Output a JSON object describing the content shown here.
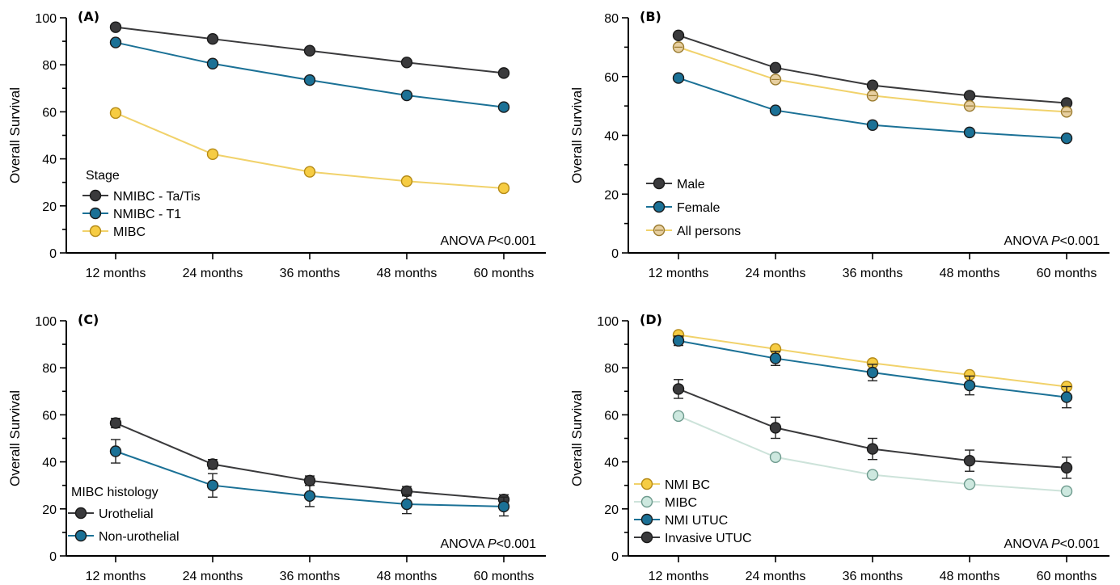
{
  "chart_data": [
    {
      "panel": "(A)",
      "type": "line",
      "categories": [
        "12 months",
        "24 months",
        "36 months",
        "48 months",
        "60 months"
      ],
      "ylabel": "Overall Survival",
      "ylim": [
        0,
        100
      ],
      "yticks": [
        0,
        20,
        40,
        60,
        80,
        100
      ],
      "legend_title": "Stage",
      "legend_placement": "bottom-left",
      "annotation": {
        "prefix": "ANOVA ",
        "italic": "P",
        "suffix": "<0.001"
      },
      "series": [
        {
          "name": "NMIBC - Ta/Tis",
          "color": "#3a3a3c",
          "fill": "#3a3a3c",
          "values": [
            96,
            91,
            86,
            81,
            76.5
          ],
          "err": [
            0.6,
            0.6,
            0.6,
            0.6,
            0.7
          ]
        },
        {
          "name": "NMIBC - T1",
          "color": "#1b7196",
          "fill": "#1b7196",
          "values": [
            89.5,
            80.5,
            73.5,
            67,
            62
          ],
          "err": [
            0.7,
            0.8,
            0.8,
            0.9,
            1
          ]
        },
        {
          "name": "MIBC",
          "color": "#f1d26b",
          "fill": "#f6cc43",
          "values": [
            59.5,
            42,
            34.5,
            30.5,
            27.5
          ],
          "err": [
            1,
            1,
            1,
            1,
            1
          ]
        }
      ]
    },
    {
      "panel": "(B)",
      "type": "line",
      "categories": [
        "12 months",
        "24 months",
        "36 months",
        "48 months",
        "60 months"
      ],
      "ylabel": "Overall Survival",
      "ylim": [
        0,
        80
      ],
      "yticks": [
        0,
        20,
        40,
        60,
        80
      ],
      "legend_placement": "bottom-left",
      "annotation": {
        "prefix": "ANOVA ",
        "italic": "P",
        "suffix": "<0.001"
      },
      "series": [
        {
          "name": "Male",
          "color": "#3a3a3c",
          "fill": "#3a3a3c",
          "values": [
            74,
            63,
            57,
            53.5,
            51
          ],
          "err": [
            0.5,
            0.5,
            0.5,
            0.6,
            0.7
          ]
        },
        {
          "name": "Female",
          "color": "#1b7196",
          "fill": "#1b7196",
          "values": [
            59.5,
            48.5,
            43.5,
            41,
            39
          ],
          "err": [
            0.6,
            0.7,
            0.8,
            0.9,
            1.2
          ]
        },
        {
          "name": "All persons",
          "color": "#f1d26b",
          "fill": "#e7cfa0",
          "edge": "#9a7b2f",
          "values": [
            70,
            59,
            53.5,
            50,
            48
          ],
          "err": [
            0.8,
            0.8,
            0.8,
            0.9,
            1.1
          ]
        }
      ]
    },
    {
      "panel": "(C)",
      "type": "line",
      "categories": [
        "12 months",
        "24 months",
        "36 months",
        "48 months",
        "60 months"
      ],
      "ylabel": "Overall Survival",
      "ylim": [
        0,
        100
      ],
      "yticks": [
        0,
        20,
        40,
        60,
        80,
        100
      ],
      "legend_title": "MIBC histology",
      "legend_placement": "bottom-left",
      "annotation": {
        "prefix": "ANOVA ",
        "italic": "P",
        "suffix": "<0.001"
      },
      "series": [
        {
          "name": "Urothelial",
          "color": "#3a3a3c",
          "fill": "#3a3a3c",
          "values": [
            56.5,
            39,
            32,
            27.5,
            24
          ],
          "err": [
            2,
            2,
            2,
            2,
            2
          ]
        },
        {
          "name": "Non-urothelial",
          "color": "#1b7196",
          "fill": "#1b7196",
          "values": [
            44.5,
            30,
            25.5,
            22,
            21
          ],
          "err": [
            5,
            5,
            4.5,
            4,
            4
          ]
        }
      ]
    },
    {
      "panel": "(D)",
      "type": "line",
      "categories": [
        "12 months",
        "24 months",
        "36 months",
        "48 months",
        "60 months"
      ],
      "ylabel": "Overall Survival",
      "ylim": [
        0,
        100
      ],
      "yticks": [
        0,
        20,
        40,
        60,
        80,
        100
      ],
      "legend_placement": "bottom-left",
      "annotation": {
        "prefix": "ANOVA ",
        "italic": "P",
        "suffix": "<0.001"
      },
      "series": [
        {
          "name": "NMI BC",
          "color": "#f1d26b",
          "fill": "#f6cc43",
          "values": [
            94,
            88,
            82,
            77,
            72
          ],
          "err": [
            0.6,
            0.6,
            0.6,
            0.6,
            0.6
          ]
        },
        {
          "name": "MIBC",
          "color": "#cde3da",
          "fill": "#cde8df",
          "edge": "#6d9a8d",
          "values": [
            59.5,
            42,
            34.5,
            30.5,
            27.5
          ],
          "err": [
            1,
            1,
            1,
            1,
            1
          ]
        },
        {
          "name": "NMI UTUC",
          "color": "#1b7196",
          "fill": "#1b7196",
          "values": [
            91.5,
            84,
            78,
            72.5,
            67.5
          ],
          "err": [
            2,
            3,
            3.5,
            4,
            4.5
          ]
        },
        {
          "name": "Invasive UTUC",
          "color": "#3a3a3c",
          "fill": "#3a3a3c",
          "values": [
            71,
            54.5,
            45.5,
            40.5,
            37.5
          ],
          "err": [
            4,
            4.5,
            4.5,
            4.5,
            4.5
          ]
        }
      ]
    }
  ]
}
